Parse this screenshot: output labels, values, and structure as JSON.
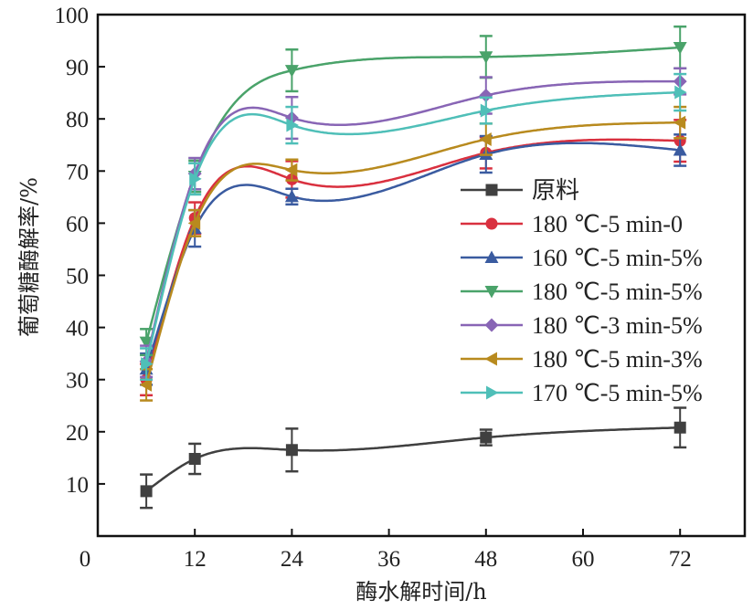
{
  "chart_data": {
    "type": "line",
    "title": "",
    "xlabel": "酶水解时间/h",
    "ylabel": "葡萄糖酶解率/%",
    "xlim": [
      0,
      80
    ],
    "ylim": [
      0,
      100
    ],
    "xticks": [
      0,
      12,
      24,
      36,
      48,
      60,
      72
    ],
    "yticks": [
      10,
      20,
      30,
      40,
      50,
      60,
      70,
      80,
      90,
      100
    ],
    "y_zero_label": "0",
    "grid": false,
    "legend_position": "right-middle",
    "x": [
      6,
      12,
      24,
      48,
      72
    ],
    "series": [
      {
        "name": "原料",
        "marker": "square",
        "color": "#404040",
        "values": [
          8.6,
          14.8,
          16.5,
          18.9,
          20.8
        ],
        "errors": [
          3.2,
          2.9,
          4.1,
          1.5,
          3.8
        ]
      },
      {
        "name": "180 ℃-5 min-0",
        "marker": "circle",
        "color": "#d9303f",
        "values": [
          30.0,
          61.0,
          68.4,
          73.5,
          75.8
        ],
        "errors": [
          3.0,
          3.0,
          3.5,
          3.0,
          4.0
        ]
      },
      {
        "name": "160 ℃-5 min-5%",
        "marker": "triangle-up",
        "color": "#3a5ba0",
        "values": [
          32.0,
          59.0,
          65.1,
          73.2,
          74.0
        ],
        "errors": [
          3.0,
          3.5,
          1.5,
          3.5,
          3.0
        ]
      },
      {
        "name": "180 ℃-5 min-5%",
        "marker": "triangle-down",
        "color": "#4aa36a",
        "values": [
          37.2,
          69.0,
          89.3,
          91.9,
          93.7
        ],
        "errors": [
          2.5,
          3.0,
          4.0,
          4.0,
          4.0
        ]
      },
      {
        "name": "180 ℃-3 min-5%",
        "marker": "diamond",
        "color": "#8865b5",
        "values": [
          33.5,
          69.5,
          80.2,
          84.5,
          87.2
        ],
        "errors": [
          3.0,
          3.0,
          4.0,
          3.5,
          2.5
        ]
      },
      {
        "name": "180 ℃-5 min-3%",
        "marker": "triangle-left",
        "color": "#b88a1e",
        "values": [
          29.0,
          60.0,
          70.2,
          76.1,
          79.3
        ],
        "errors": [
          3.0,
          2.5,
          2.0,
          3.0,
          3.0
        ]
      },
      {
        "name": "170 ℃-5 min-5%",
        "marker": "triangle-right",
        "color": "#4fbfb8",
        "values": [
          33.0,
          68.5,
          78.8,
          81.6,
          85.1
        ],
        "errors": [
          3.0,
          3.0,
          3.5,
          2.5,
          3.5
        ]
      }
    ]
  }
}
